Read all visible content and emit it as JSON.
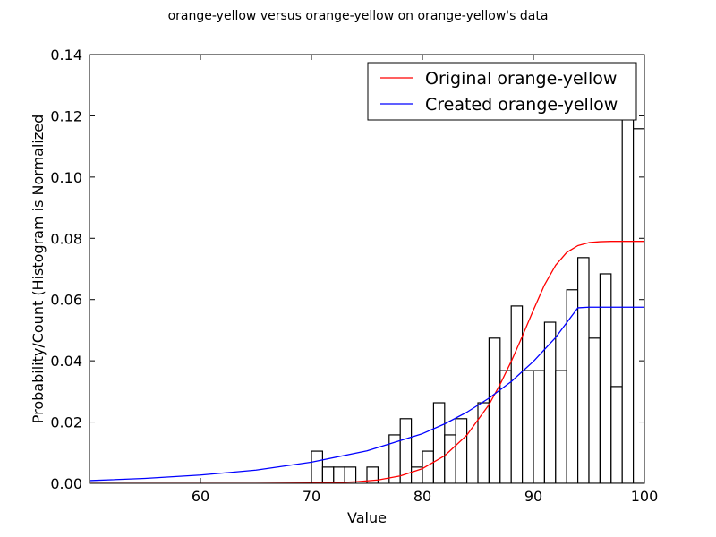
{
  "chart_data": {
    "type": "bar",
    "title": "orange-yellow versus orange-yellow on orange-yellow's data",
    "xlabel": "Value",
    "ylabel": "Probability/Count (Histogram is Normalized",
    "xlim": [
      50,
      100
    ],
    "ylim": [
      0,
      0.14
    ],
    "grid": false,
    "legend_position": "upper right",
    "xticks": [
      60,
      70,
      80,
      90,
      100
    ],
    "xtick_labels": [
      "60",
      "70",
      "80",
      "90",
      "100"
    ],
    "yticks": [
      0.0,
      0.02,
      0.04,
      0.06,
      0.08,
      0.1,
      0.12,
      0.14
    ],
    "ytick_labels": [
      "0.00",
      "0.02",
      "0.04",
      "0.06",
      "0.08",
      "0.10",
      "0.12",
      "0.14"
    ],
    "histogram": {
      "bin_width": 1.0,
      "bin_left_edges": [
        70,
        71,
        72,
        73,
        75,
        77,
        78,
        79,
        80,
        81,
        82,
        83,
        85,
        86,
        87,
        88,
        89,
        90,
        91,
        92,
        93,
        94,
        95,
        96,
        97,
        98,
        99
      ],
      "values": [
        0.0105,
        0.0053,
        0.0053,
        0.0053,
        0.0053,
        0.0158,
        0.0211,
        0.0053,
        0.0105,
        0.0263,
        0.0158,
        0.0211,
        0.0263,
        0.0474,
        0.0368,
        0.0579,
        0.0368,
        0.0368,
        0.0526,
        0.0368,
        0.0632,
        0.0737,
        0.0474,
        0.0684,
        0.0316,
        0.1211,
        0.1158
      ],
      "fill": "#ffffff",
      "edge_color": "#000000"
    },
    "series": [
      {
        "name": "Original orange-yellow",
        "color": "#ff0000",
        "x": [
          50,
          55,
          60,
          65,
          70,
          72,
          74,
          76,
          78,
          80,
          82,
          84,
          86,
          87,
          88,
          89,
          90,
          91,
          92,
          93,
          94,
          95,
          96,
          97,
          98,
          100
        ],
        "y": [
          0.0,
          0.0,
          0.0,
          0.0,
          0.0001,
          0.0002,
          0.0005,
          0.0011,
          0.0024,
          0.0048,
          0.009,
          0.0157,
          0.0257,
          0.0323,
          0.0398,
          0.048,
          0.0566,
          0.0648,
          0.0712,
          0.0754,
          0.0776,
          0.0786,
          0.0789,
          0.079,
          0.079,
          0.079
        ]
      },
      {
        "name": "Created orange-yellow",
        "color": "#0000ff",
        "x": [
          50,
          55,
          60,
          65,
          70,
          75,
          80,
          82,
          84,
          86,
          88,
          90,
          92,
          94,
          95,
          100
        ],
        "y": [
          0.0009,
          0.0016,
          0.0027,
          0.0043,
          0.0069,
          0.0106,
          0.0162,
          0.0194,
          0.0232,
          0.0278,
          0.0332,
          0.0398,
          0.0476,
          0.0573,
          0.0575,
          0.0575
        ]
      }
    ]
  }
}
